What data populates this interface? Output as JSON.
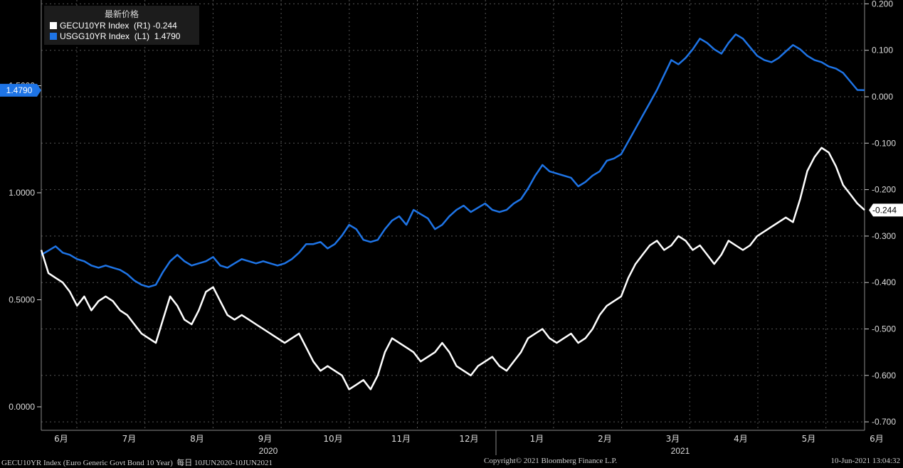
{
  "legend": {
    "title": "最新价格",
    "series": [
      {
        "label": "GECU10YR Index  (R1) -0.244",
        "color": "#ffffff"
      },
      {
        "label": "USGG10YR Index  (L1)  1.4790",
        "color": "#1e74e6"
      }
    ]
  },
  "footer": {
    "left": "GECU10YR Index (Euro Generic Govt Bond 10 Year)  每日 10JUN2020-10JUN2021",
    "center": "Copyright© 2021 Bloomberg Finance L.P.",
    "right": "10-Jun-2021 13:04:32"
  },
  "chart_data": {
    "type": "line",
    "left_axis": {
      "ticks": [
        "0.0000",
        "0.5000",
        "1.0000",
        "1.5000"
      ],
      "range": [
        -0.1,
        1.85
      ],
      "last_label": "1.4790"
    },
    "right_axis": {
      "ticks": [
        "0.200",
        "0.100",
        "0.000",
        "-0.100",
        "-0.200",
        "-0.300",
        "-0.400",
        "-0.500",
        "-0.600",
        "-0.700"
      ],
      "range": [
        -0.7,
        0.2
      ],
      "last_label": "-0.244"
    },
    "x_months": [
      "6月",
      "7月",
      "8月",
      "9月",
      "10月",
      "11月",
      "12月",
      "1月",
      "2月",
      "3月",
      "4月",
      "5月",
      "6月"
    ],
    "x_years": [
      "2020",
      "2021"
    ],
    "series": [
      {
        "name": "USGG10YR Index",
        "axis": "left",
        "color": "#1e74e6",
        "last": 1.479,
        "points": [
          [
            0,
            0.71
          ],
          [
            3,
            0.73
          ],
          [
            6,
            0.75
          ],
          [
            9,
            0.72
          ],
          [
            12,
            0.71
          ],
          [
            15,
            0.69
          ],
          [
            18,
            0.68
          ],
          [
            21,
            0.66
          ],
          [
            24,
            0.65
          ],
          [
            27,
            0.66
          ],
          [
            30,
            0.65
          ],
          [
            33,
            0.64
          ],
          [
            36,
            0.62
          ],
          [
            39,
            0.59
          ],
          [
            42,
            0.57
          ],
          [
            45,
            0.56
          ],
          [
            48,
            0.57
          ],
          [
            51,
            0.63
          ],
          [
            54,
            0.68
          ],
          [
            57,
            0.71
          ],
          [
            60,
            0.68
          ],
          [
            63,
            0.66
          ],
          [
            66,
            0.67
          ],
          [
            69,
            0.68
          ],
          [
            72,
            0.7
          ],
          [
            75,
            0.66
          ],
          [
            78,
            0.65
          ],
          [
            81,
            0.67
          ],
          [
            84,
            0.69
          ],
          [
            87,
            0.68
          ],
          [
            90,
            0.67
          ],
          [
            93,
            0.68
          ],
          [
            96,
            0.67
          ],
          [
            99,
            0.66
          ],
          [
            102,
            0.67
          ],
          [
            105,
            0.69
          ],
          [
            108,
            0.72
          ],
          [
            111,
            0.76
          ],
          [
            114,
            0.76
          ],
          [
            117,
            0.77
          ],
          [
            120,
            0.74
          ],
          [
            123,
            0.76
          ],
          [
            126,
            0.8
          ],
          [
            129,
            0.85
          ],
          [
            132,
            0.83
          ],
          [
            135,
            0.78
          ],
          [
            138,
            0.77
          ],
          [
            141,
            0.78
          ],
          [
            144,
            0.83
          ],
          [
            147,
            0.87
          ],
          [
            150,
            0.89
          ],
          [
            153,
            0.85
          ],
          [
            156,
            0.92
          ],
          [
            159,
            0.9
          ],
          [
            162,
            0.88
          ],
          [
            165,
            0.83
          ],
          [
            168,
            0.85
          ],
          [
            171,
            0.89
          ],
          [
            174,
            0.92
          ],
          [
            177,
            0.94
          ],
          [
            180,
            0.91
          ],
          [
            183,
            0.93
          ],
          [
            186,
            0.95
          ],
          [
            189,
            0.92
          ],
          [
            192,
            0.91
          ],
          [
            195,
            0.92
          ],
          [
            198,
            0.95
          ],
          [
            201,
            0.97
          ],
          [
            204,
            1.02
          ],
          [
            207,
            1.08
          ],
          [
            210,
            1.13
          ],
          [
            213,
            1.1
          ],
          [
            216,
            1.09
          ],
          [
            219,
            1.08
          ],
          [
            222,
            1.07
          ],
          [
            225,
            1.03
          ],
          [
            228,
            1.05
          ],
          [
            231,
            1.08
          ],
          [
            234,
            1.1
          ],
          [
            237,
            1.15
          ],
          [
            240,
            1.16
          ],
          [
            243,
            1.18
          ],
          [
            246,
            1.24
          ],
          [
            249,
            1.3
          ],
          [
            252,
            1.36
          ],
          [
            255,
            1.42
          ],
          [
            258,
            1.48
          ],
          [
            261,
            1.55
          ],
          [
            264,
            1.62
          ],
          [
            267,
            1.6
          ],
          [
            270,
            1.63
          ],
          [
            273,
            1.67
          ],
          [
            276,
            1.72
          ],
          [
            279,
            1.7
          ],
          [
            282,
            1.67
          ],
          [
            285,
            1.65
          ],
          [
            288,
            1.7
          ],
          [
            291,
            1.74
          ],
          [
            294,
            1.72
          ],
          [
            297,
            1.68
          ],
          [
            300,
            1.64
          ],
          [
            303,
            1.62
          ],
          [
            306,
            1.61
          ],
          [
            309,
            1.63
          ],
          [
            312,
            1.66
          ],
          [
            315,
            1.69
          ],
          [
            318,
            1.67
          ],
          [
            321,
            1.64
          ],
          [
            324,
            1.62
          ],
          [
            327,
            1.61
          ],
          [
            330,
            1.59
          ],
          [
            333,
            1.58
          ],
          [
            336,
            1.56
          ],
          [
            339,
            1.52
          ],
          [
            342,
            1.48
          ],
          [
            345,
            1.479
          ]
        ]
      },
      {
        "name": "GECU10YR Index",
        "axis": "right",
        "color": "#ffffff",
        "last": -0.244,
        "points": [
          [
            0,
            -0.33
          ],
          [
            3,
            -0.38
          ],
          [
            6,
            -0.39
          ],
          [
            9,
            -0.4
          ],
          [
            12,
            -0.42
          ],
          [
            15,
            -0.45
          ],
          [
            18,
            -0.43
          ],
          [
            21,
            -0.46
          ],
          [
            24,
            -0.44
          ],
          [
            27,
            -0.43
          ],
          [
            30,
            -0.44
          ],
          [
            33,
            -0.46
          ],
          [
            36,
            -0.47
          ],
          [
            39,
            -0.49
          ],
          [
            42,
            -0.51
          ],
          [
            45,
            -0.52
          ],
          [
            48,
            -0.53
          ],
          [
            51,
            -0.48
          ],
          [
            54,
            -0.43
          ],
          [
            57,
            -0.45
          ],
          [
            60,
            -0.48
          ],
          [
            63,
            -0.49
          ],
          [
            66,
            -0.46
          ],
          [
            69,
            -0.42
          ],
          [
            72,
            -0.41
          ],
          [
            75,
            -0.44
          ],
          [
            78,
            -0.47
          ],
          [
            81,
            -0.48
          ],
          [
            84,
            -0.47
          ],
          [
            87,
            -0.48
          ],
          [
            90,
            -0.49
          ],
          [
            93,
            -0.5
          ],
          [
            96,
            -0.51
          ],
          [
            99,
            -0.52
          ],
          [
            102,
            -0.53
          ],
          [
            105,
            -0.52
          ],
          [
            108,
            -0.51
          ],
          [
            111,
            -0.54
          ],
          [
            114,
            -0.57
          ],
          [
            117,
            -0.59
          ],
          [
            120,
            -0.58
          ],
          [
            123,
            -0.59
          ],
          [
            126,
            -0.6
          ],
          [
            129,
            -0.63
          ],
          [
            132,
            -0.62
          ],
          [
            135,
            -0.61
          ],
          [
            138,
            -0.63
          ],
          [
            141,
            -0.6
          ],
          [
            144,
            -0.55
          ],
          [
            147,
            -0.52
          ],
          [
            150,
            -0.53
          ],
          [
            153,
            -0.54
          ],
          [
            156,
            -0.55
          ],
          [
            159,
            -0.57
          ],
          [
            162,
            -0.56
          ],
          [
            165,
            -0.55
          ],
          [
            168,
            -0.53
          ],
          [
            171,
            -0.55
          ],
          [
            174,
            -0.58
          ],
          [
            177,
            -0.59
          ],
          [
            180,
            -0.6
          ],
          [
            183,
            -0.58
          ],
          [
            186,
            -0.57
          ],
          [
            189,
            -0.56
          ],
          [
            192,
            -0.58
          ],
          [
            195,
            -0.59
          ],
          [
            198,
            -0.57
          ],
          [
            201,
            -0.55
          ],
          [
            204,
            -0.52
          ],
          [
            207,
            -0.51
          ],
          [
            210,
            -0.5
          ],
          [
            213,
            -0.52
          ],
          [
            216,
            -0.53
          ],
          [
            219,
            -0.52
          ],
          [
            222,
            -0.51
          ],
          [
            225,
            -0.53
          ],
          [
            228,
            -0.52
          ],
          [
            231,
            -0.5
          ],
          [
            234,
            -0.47
          ],
          [
            237,
            -0.45
          ],
          [
            240,
            -0.44
          ],
          [
            243,
            -0.43
          ],
          [
            246,
            -0.39
          ],
          [
            249,
            -0.36
          ],
          [
            252,
            -0.34
          ],
          [
            255,
            -0.32
          ],
          [
            258,
            -0.31
          ],
          [
            261,
            -0.33
          ],
          [
            264,
            -0.32
          ],
          [
            267,
            -0.3
          ],
          [
            270,
            -0.31
          ],
          [
            273,
            -0.33
          ],
          [
            276,
            -0.32
          ],
          [
            279,
            -0.34
          ],
          [
            282,
            -0.36
          ],
          [
            285,
            -0.34
          ],
          [
            288,
            -0.31
          ],
          [
            291,
            -0.32
          ],
          [
            294,
            -0.33
          ],
          [
            297,
            -0.32
          ],
          [
            300,
            -0.3
          ],
          [
            303,
            -0.29
          ],
          [
            306,
            -0.28
          ],
          [
            309,
            -0.27
          ],
          [
            312,
            -0.26
          ],
          [
            315,
            -0.27
          ],
          [
            318,
            -0.22
          ],
          [
            321,
            -0.16
          ],
          [
            324,
            -0.13
          ],
          [
            327,
            -0.11
          ],
          [
            330,
            -0.12
          ],
          [
            333,
            -0.15
          ],
          [
            336,
            -0.19
          ],
          [
            339,
            -0.21
          ],
          [
            342,
            -0.23
          ],
          [
            345,
            -0.244
          ]
        ]
      }
    ]
  }
}
